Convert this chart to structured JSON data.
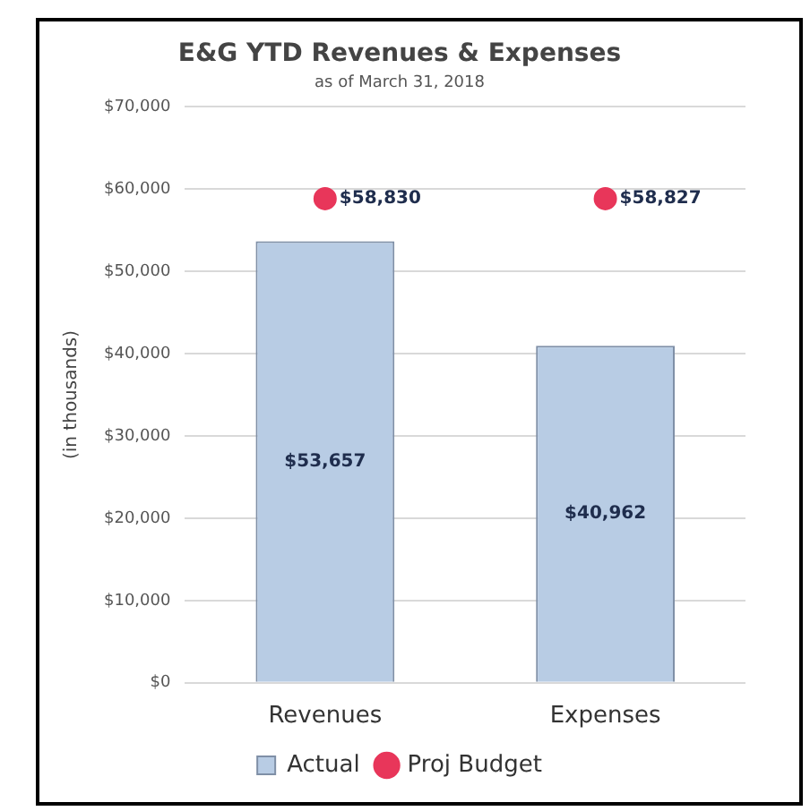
{
  "chart_data": {
    "type": "bar",
    "title": "E&G YTD Revenues & Expenses",
    "subtitle": "as of March 31, 2018",
    "ylabel": "(in thousands)",
    "categories": [
      "Revenues",
      "Expenses"
    ],
    "series": [
      {
        "name": "Actual",
        "color": "#b8cce4",
        "values": [
          53657,
          40962
        ],
        "value_labels": [
          "$53,657",
          "$40,962"
        ]
      },
      {
        "name": "Proj Budget",
        "type": "scatter",
        "color": "#e8365a",
        "x": [
          "Revenues",
          "Expenses"
        ],
        "values": [
          58830,
          58827
        ],
        "value_labels": [
          "$58,830",
          "$58,827"
        ],
        "marker": "circle"
      }
    ],
    "ylim": [
      0,
      70000
    ],
    "yticks": [
      {
        "value": 0,
        "label": "$0"
      },
      {
        "value": 10000,
        "label": "$10,000"
      },
      {
        "value": 20000,
        "label": "$20,000"
      },
      {
        "value": 30000,
        "label": "$30,000"
      },
      {
        "value": 40000,
        "label": "$40,000"
      },
      {
        "value": 50000,
        "label": "$50,000"
      },
      {
        "value": 60000,
        "label": "$60,000"
      },
      {
        "value": 70000,
        "label": "$70,000"
      }
    ],
    "grid": "y",
    "legend": "bottom"
  }
}
